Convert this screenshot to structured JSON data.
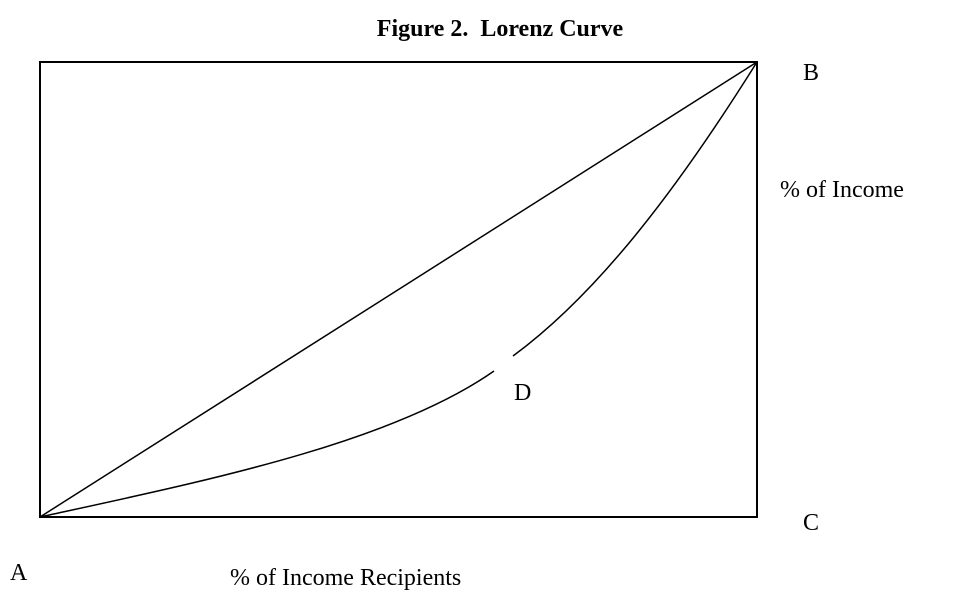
{
  "title": "Figure 2.  Lorenz Curve",
  "points": {
    "a": "A",
    "b": "B",
    "c": "C",
    "d": "D"
  },
  "x_label": "% of Income Recipients",
  "y_label": "% of Income"
}
